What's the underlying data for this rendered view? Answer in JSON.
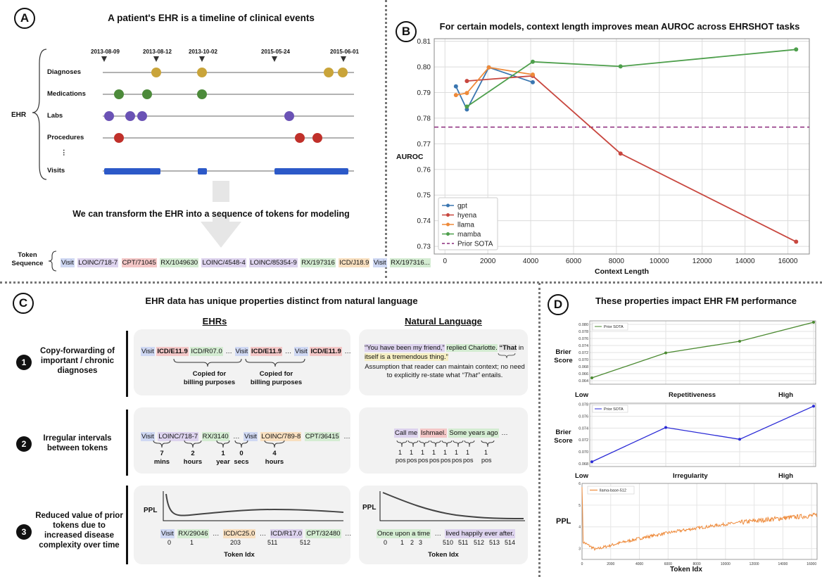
{
  "panels": {
    "a": {
      "badge": "A",
      "title": "A patient's EHR is a timeline of clinical events",
      "ehr_label": "EHR",
      "dates": [
        "2013-08-09",
        "2013-08-12",
        "2013-10-02",
        "2015-05-24",
        "2015-06-01"
      ],
      "rows": [
        "Diagnoses",
        "Medications",
        "Labs",
        "Procedures",
        "⋮",
        "Visits"
      ],
      "transform_text": "We can transform the EHR into a sequence of tokens for modeling",
      "token_label_1": "Token",
      "token_label_2": "Sequence",
      "tokens": [
        "Visit",
        "LOINC/718-7",
        "CPT/71045",
        "RX/1049630",
        "LOINC/4548-4",
        "LOINC/85354-9",
        "RX/197316",
        "ICD/J18.9",
        "Visit",
        "RX/197316..."
      ]
    },
    "b": {
      "badge": "B",
      "title": "For certain models, context length improves mean AUROC across EHRSHOT tasks"
    },
    "c": {
      "badge": "C",
      "title": "EHR data has unique properties distinct from natural language",
      "col_ehr": "EHRs",
      "col_nl": "Natural Language",
      "row1": {
        "num": "1",
        "label": "Copy-forwarding of important / chronic diagnoses",
        "ehr_tokens": [
          "Visit",
          "ICD/E11.9",
          "ICD/R07.0",
          "…",
          "Visit",
          "ICD/E11.9",
          "…",
          "Visit",
          "ICD/E11.9",
          "…"
        ],
        "copied_1": "Copied for billing purposes",
        "copied_2": "Copied for billing purposes",
        "nl_quote_a": "“You have been my friend,”",
        "nl_quote_b": "replied Charlotte.",
        "nl_quote_c": "“That",
        "nl_quote_d": "in",
        "nl_quote_e": "itself is a tremendous thing.”",
        "nl_note": "Assumption that reader can maintain context; no need to explicitly re-state what",
        "nl_note_em": "“That”",
        "nl_note_end": "entails."
      },
      "row2": {
        "num": "2",
        "label": "Irregular intervals between tokens",
        "ehr_tokens": [
          "Visit",
          "LOINC/718-7",
          "RX/3140",
          "…",
          "Visit",
          "LOINC/789-8",
          "CPT/36415",
          "…"
        ],
        "intervals": [
          {
            "n": "7",
            "u": "mins"
          },
          {
            "n": "2",
            "u": "hours"
          },
          {
            "n": "1",
            "u": "year"
          },
          {
            "n": "0",
            "u": "secs"
          },
          {
            "n": "4",
            "u": "hours"
          }
        ],
        "nl_tokens": [
          "Call me",
          "Ishmael.",
          "Some years ago",
          "…"
        ],
        "nl_ones": [
          "1",
          "1",
          "1",
          "1",
          "1",
          "1",
          "1",
          "1"
        ],
        "nl_pos": [
          "pos",
          "pos",
          "pos",
          "pos",
          "pos",
          "pos",
          "pos",
          "pos"
        ]
      },
      "row3": {
        "num": "3",
        "label": "Reduced value of prior tokens due to increased disease complexity over time",
        "ppl": "PPL",
        "ehr_tokens": [
          "Visit",
          "RX/29046",
          "…",
          "ICD/C25.0",
          "…",
          "ICD/R17.0",
          "CPT/32480",
          "…"
        ],
        "ehr_idx": [
          "0",
          "1",
          "203",
          "511",
          "512"
        ],
        "nl_tokens": [
          "Once upon a time",
          "…",
          "lived happily ever after."
        ],
        "nl_idx": [
          "0",
          "1",
          "2",
          "3",
          "510",
          "511",
          "512",
          "513",
          "514"
        ],
        "xlabel": "Token Idx"
      }
    },
    "d": {
      "badge": "D",
      "title": "These properties impact EHR FM performance",
      "ylabel_brier": "Brier",
      "ylabel_brier2": "Score",
      "ylabel_ppl": "PPL",
      "low": "Low",
      "high": "High",
      "xlabel_rep": "Repetitiveness",
      "xlabel_irr": "Irregularity",
      "xlabel_tok": "Token Idx"
    }
  },
  "chart_data": [
    {
      "type": "line",
      "title": "For certain models, context length improves mean AUROC across EHRSHOT tasks",
      "xlabel": "Context Length",
      "ylabel": "AUROC",
      "xlim": [
        -500,
        17000
      ],
      "ylim": [
        0.727,
        0.811
      ],
      "xticks": [
        0,
        2000,
        4000,
        6000,
        8000,
        10000,
        12000,
        14000,
        16000
      ],
      "yticks": [
        0.73,
        0.74,
        0.75,
        0.76,
        0.77,
        0.78,
        0.79,
        0.8,
        0.81
      ],
      "series": [
        {
          "name": "gpt",
          "color": "#3a76b0",
          "x": [
            512,
            1024,
            2048,
            4096
          ],
          "y": [
            0.7924,
            0.7834,
            0.7998,
            0.794
          ]
        },
        {
          "name": "hyena",
          "color": "#c8473f",
          "x": [
            1024,
            4096,
            8192,
            16384
          ],
          "y": [
            0.7945,
            0.7965,
            0.7662,
            0.7318
          ]
        },
        {
          "name": "llama",
          "color": "#ee8a3a",
          "x": [
            512,
            1024,
            2048,
            4096
          ],
          "y": [
            0.789,
            0.7898,
            0.7998,
            0.797
          ]
        },
        {
          "name": "mamba",
          "color": "#4e9f4c",
          "x": [
            1024,
            4096,
            8192,
            16384
          ],
          "y": [
            0.7845,
            0.802,
            0.8002,
            0.8068
          ]
        }
      ],
      "reference": {
        "name": "Prior SOTA",
        "y": 0.7765,
        "color": "#8b2a7c"
      },
      "legend_position": "bottom-left",
      "grid": true
    },
    {
      "type": "line",
      "xlabel": "Repetitiveness",
      "ylabel": "Brier Score",
      "categories": [
        "Low",
        "",
        "",
        "High"
      ],
      "ylim": [
        0.063,
        0.081
      ],
      "yticks": [
        0.064,
        0.066,
        0.068,
        0.07,
        0.072,
        0.074,
        0.076,
        0.078,
        0.08
      ],
      "series": [
        {
          "name": "Prior SOTA",
          "color": "#4b8a31",
          "values": [
            0.0648,
            0.0719,
            0.0752,
            0.0806
          ]
        }
      ],
      "legend_position": "top-left"
    },
    {
      "type": "line",
      "xlabel": "Irregularity",
      "ylabel": "Brier Score",
      "categories": [
        "Low",
        "",
        "",
        "High"
      ],
      "ylim": [
        0.0675,
        0.0782
      ],
      "yticks": [
        0.068,
        0.07,
        0.072,
        0.074,
        0.076,
        0.078
      ],
      "series": [
        {
          "name": "Prior SOTA",
          "color": "#2a2ad6",
          "values": [
            0.0683,
            0.0741,
            0.0721,
            0.0777
          ]
        }
      ],
      "legend_position": "top-left"
    },
    {
      "type": "line",
      "xlabel": "Token Idx",
      "ylabel": "PPL",
      "xlim": [
        0,
        16384
      ],
      "ylim": [
        2.5,
        6.0
      ],
      "xticks": [
        0,
        2000,
        4000,
        6000,
        8000,
        10000,
        12000,
        14000,
        16000
      ],
      "yticks": [
        3,
        4,
        5,
        6
      ],
      "series": [
        {
          "name": "llama-base-512",
          "color": "#ee8a3a"
        }
      ],
      "legend_position": "top-left"
    }
  ]
}
